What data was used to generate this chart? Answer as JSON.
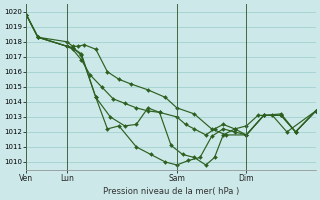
{
  "title": "Pression niveau de la mer( hPa )",
  "bg_color": "#cce8e8",
  "grid_color": "#99cccc",
  "line_color": "#2d6020",
  "ylim": [
    1009.5,
    1020.5
  ],
  "yticks": [
    1010,
    1011,
    1012,
    1013,
    1014,
    1015,
    1016,
    1017,
    1018,
    1019,
    1020
  ],
  "vline_x": [
    0,
    0.14,
    0.52,
    0.76
  ],
  "xlabel_labels": [
    "Ven",
    "Lun",
    "Sam",
    "Dim"
  ],
  "series": [
    {
      "x": [
        0.0,
        0.04,
        0.14,
        0.16,
        0.19,
        0.22,
        0.26,
        0.3,
        0.34,
        0.38,
        0.42,
        0.46,
        0.52,
        0.55,
        0.58,
        0.62,
        0.65,
        0.68,
        0.72,
        0.76,
        0.8,
        0.85,
        0.9,
        1.0
      ],
      "y": [
        1019.8,
        1018.3,
        1017.7,
        1017.5,
        1016.8,
        1015.8,
        1015.0,
        1014.2,
        1013.9,
        1013.6,
        1013.4,
        1013.3,
        1013.0,
        1012.5,
        1012.2,
        1011.8,
        1012.2,
        1012.5,
        1012.2,
        1012.4,
        1013.1,
        1013.1,
        1012.0,
        1013.4
      ]
    },
    {
      "x": [
        0.0,
        0.04,
        0.14,
        0.16,
        0.19,
        0.24,
        0.29,
        0.34,
        0.38,
        0.42,
        0.46,
        0.5,
        0.54,
        0.58,
        0.62,
        0.65,
        0.68,
        0.72,
        0.76,
        0.82,
        0.88,
        0.93,
        1.0
      ],
      "y": [
        1019.8,
        1018.3,
        1017.7,
        1017.6,
        1017.1,
        1014.3,
        1013.0,
        1012.4,
        1012.5,
        1013.6,
        1013.3,
        1011.1,
        1010.5,
        1010.3,
        1009.8,
        1010.3,
        1011.8,
        1012.2,
        1011.8,
        1013.1,
        1013.1,
        1012.0,
        1013.4
      ]
    },
    {
      "x": [
        0.0,
        0.04,
        0.14,
        0.16,
        0.19,
        0.24,
        0.28,
        0.32,
        0.38,
        0.43,
        0.48,
        0.52,
        0.56,
        0.6,
        0.64,
        0.68,
        0.72,
        0.76,
        0.82,
        0.88,
        0.93,
        1.0
      ],
      "y": [
        1019.8,
        1018.3,
        1017.7,
        1017.6,
        1017.2,
        1014.3,
        1012.2,
        1012.4,
        1011.0,
        1010.5,
        1010.0,
        1009.8,
        1010.1,
        1010.3,
        1011.7,
        1012.2,
        1012.0,
        1011.8,
        1013.1,
        1013.1,
        1012.0,
        1013.4
      ]
    },
    {
      "x": [
        0.0,
        0.04,
        0.14,
        0.16,
        0.18,
        0.2,
        0.24,
        0.28,
        0.32,
        0.36,
        0.42,
        0.48,
        0.52,
        0.58,
        0.64,
        0.69,
        0.76,
        0.82,
        0.88,
        0.93,
        1.0
      ],
      "y": [
        1019.8,
        1018.3,
        1018.0,
        1017.7,
        1017.7,
        1017.8,
        1017.5,
        1016.0,
        1015.5,
        1015.2,
        1014.8,
        1014.3,
        1013.6,
        1013.2,
        1012.2,
        1011.8,
        1011.8,
        1013.1,
        1013.2,
        1012.0,
        1013.4
      ]
    }
  ]
}
